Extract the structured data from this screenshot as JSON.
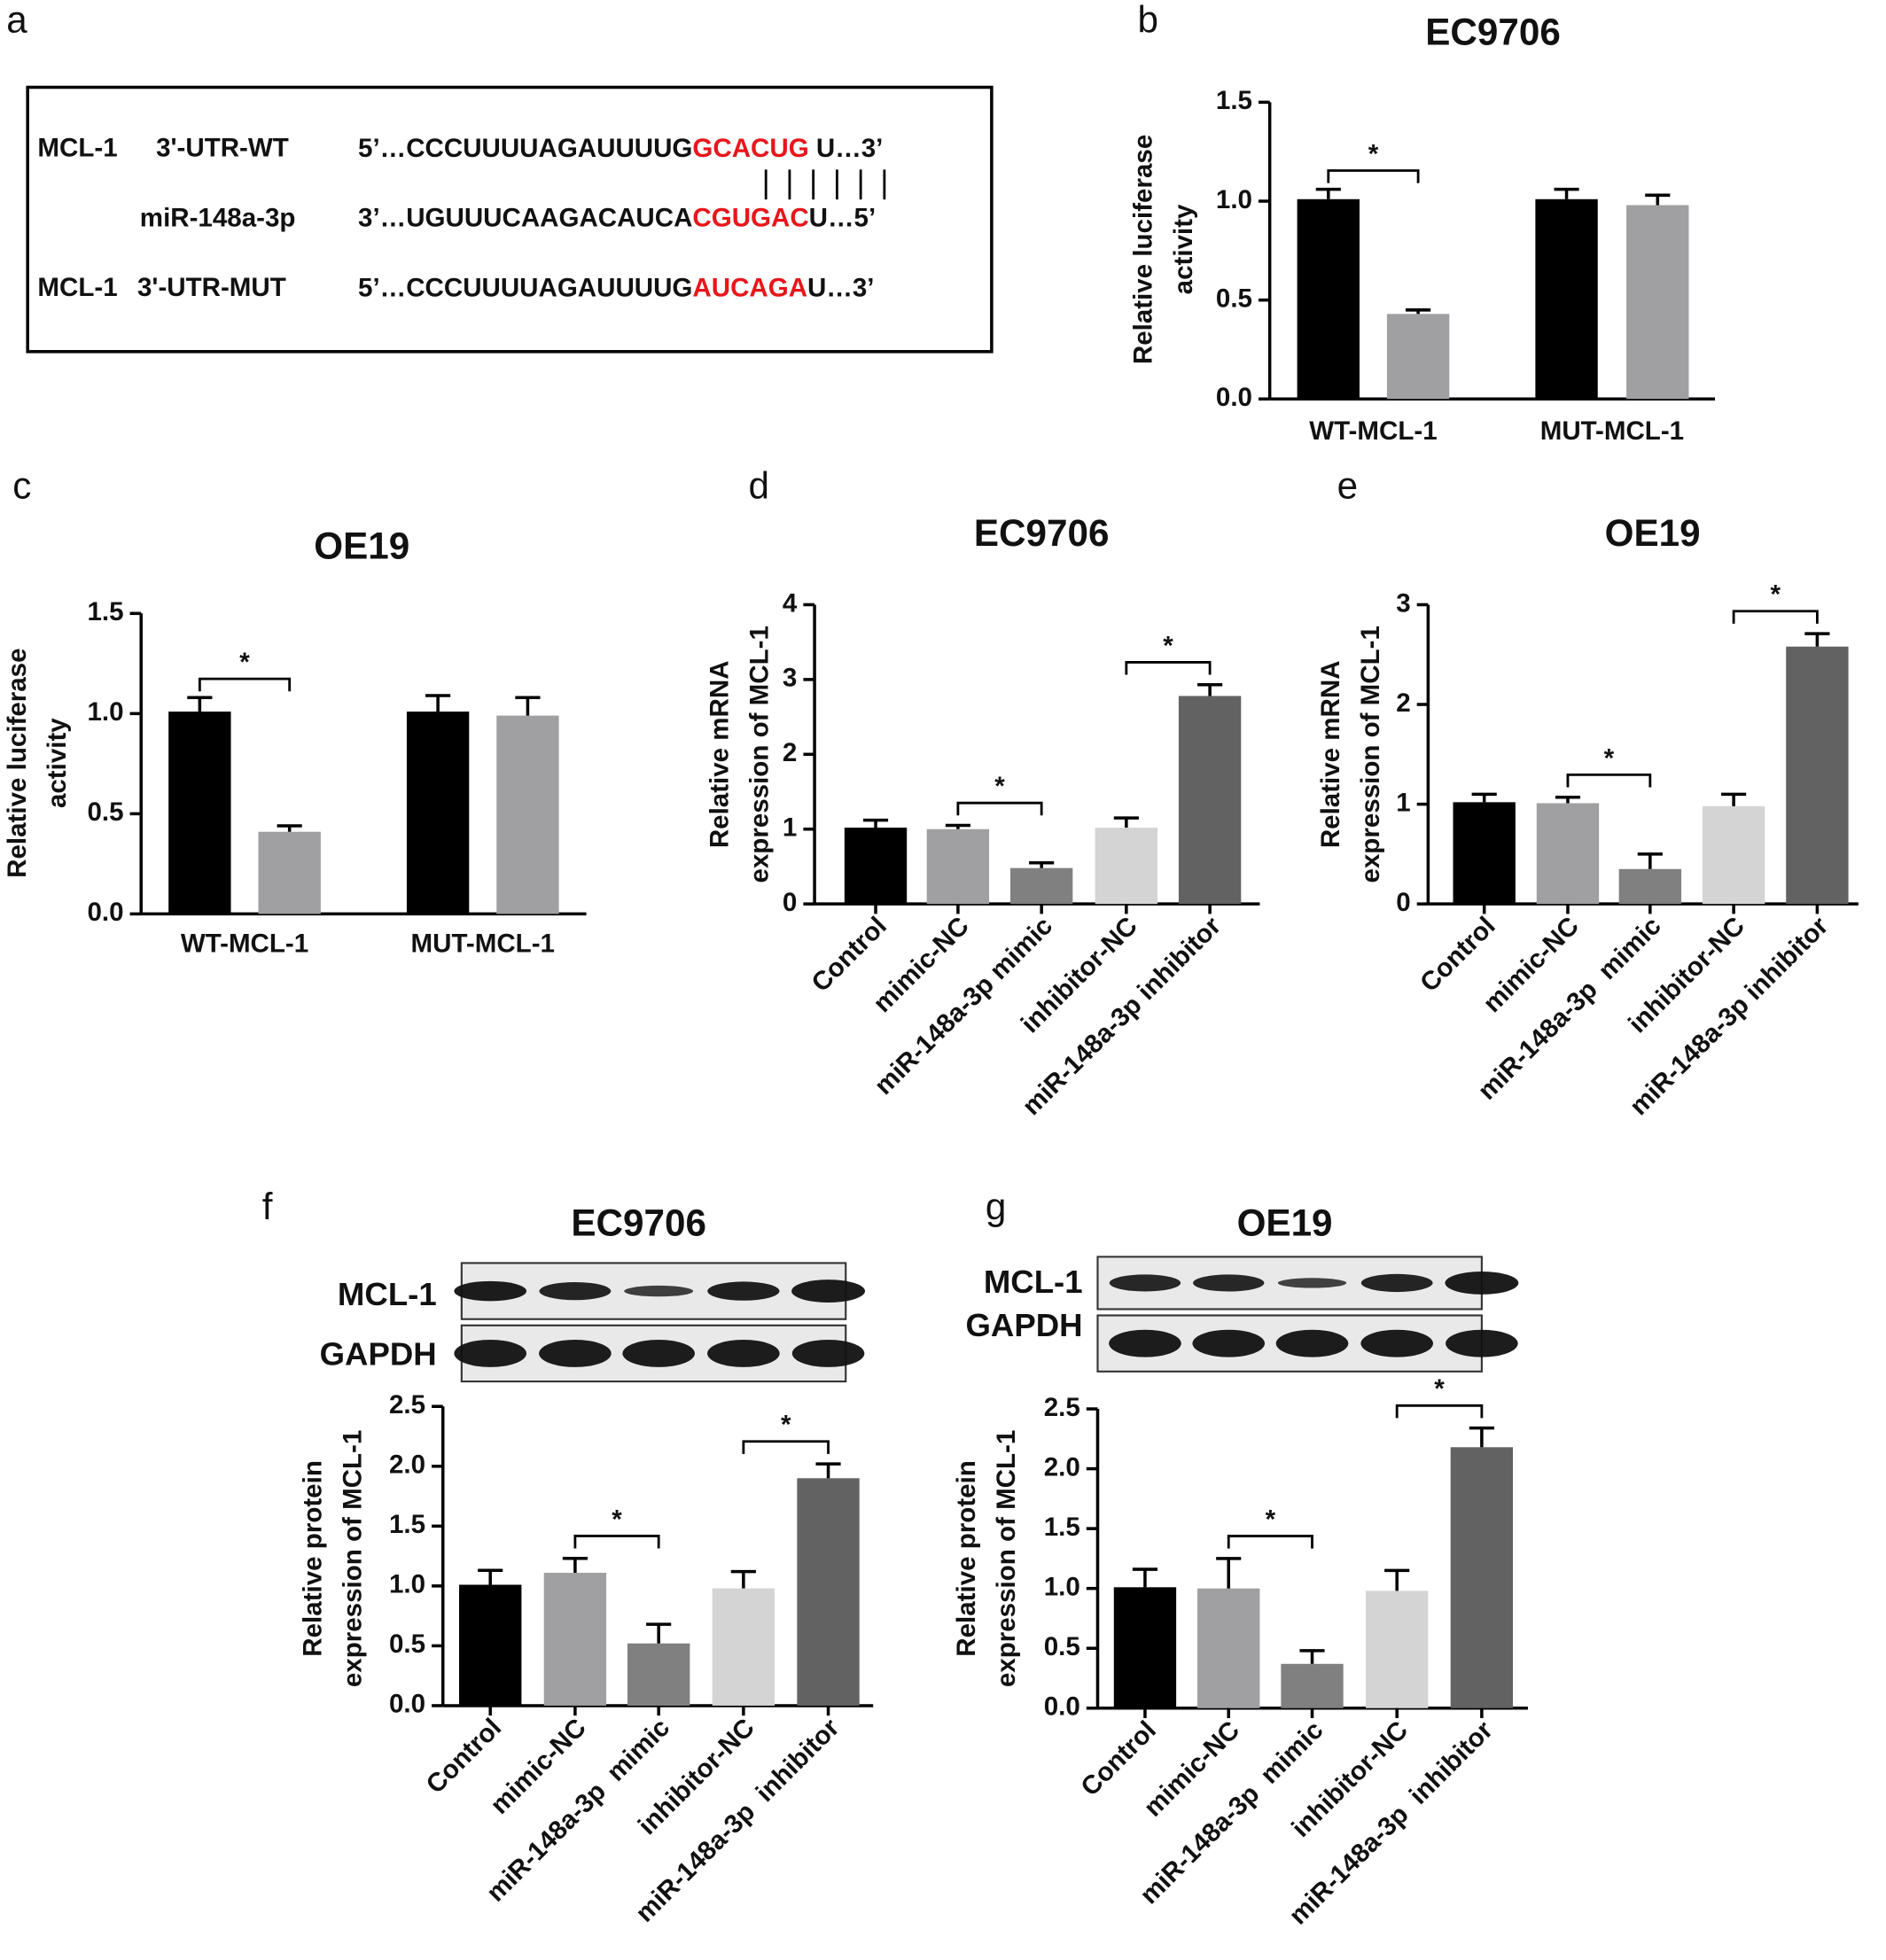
{
  "sequence_panel": {
    "panel": "a",
    "rows": [
      {
        "gene": "MCL-1",
        "region": "3'-UTR-WT",
        "sequence": [
          "5’…CCCUUUUAGAUUUUG",
          "GCACUG",
          " U…3’"
        ]
      },
      {
        "region": "miR-148a-3p",
        "sequence": [
          "3’…UGUUUCAAGACAUCA",
          "CGUGAC",
          "U…5’"
        ]
      },
      {
        "gene": "MCL-1",
        "region": "3'-UTR-MUT",
        "sequence": [
          "5’…CCCUUUUAGAUUUUG",
          "AUCAGA",
          "U…3’"
        ]
      }
    ]
  },
  "chart_data": [
    {
      "type": "grouped_bar",
      "panel": "b",
      "title": "EC9706",
      "ylabel": [
        "Relative luciferase",
        "activity"
      ],
      "categories": [
        "WT-MCL-1",
        "MUT-MCL-1"
      ],
      "series": [
        {
          "color": "#000000",
          "values": [
            1.01,
            1.01
          ],
          "errors": [
            0.05,
            0.05
          ]
        },
        {
          "color": "#a0a0a2",
          "values": [
            0.43,
            0.98
          ],
          "errors": [
            0.02,
            0.05
          ]
        }
      ],
      "ylim": [
        0,
        1.5
      ],
      "yticks": [
        {
          "value": 0,
          "label": "0.0"
        },
        0.5,
        {
          "value": 1,
          "label": "1.0"
        },
        1.5
      ],
      "significance": [
        {
          "label": "*",
          "category": 0
        }
      ]
    },
    {
      "type": "grouped_bar",
      "panel": "c",
      "title": "OE19",
      "ylabel": [
        "Relative luciferase",
        "activity"
      ],
      "categories": [
        "WT-MCL-1",
        "MUT-MCL-1"
      ],
      "series": [
        {
          "color": "#000000",
          "values": [
            1.01,
            1.01
          ],
          "errors": [
            0.07,
            0.08
          ]
        },
        {
          "color": "#a0a0a2",
          "values": [
            0.41,
            0.99
          ],
          "errors": [
            0.03,
            0.09
          ]
        }
      ],
      "ylim": [
        0,
        1.5
      ],
      "yticks": [
        {
          "value": 0,
          "label": "0.0"
        },
        0.5,
        {
          "value": 1,
          "label": "1.0"
        },
        1.5
      ],
      "significance": [
        {
          "label": "*",
          "category": 0
        }
      ]
    },
    {
      "type": "bar",
      "panel": "d",
      "title": "EC9706",
      "ylabel": [
        "Relative mRNA",
        "expression of MCL-1"
      ],
      "categories": [
        "Control",
        "mimic-NC",
        "miR-148a-3p mimic",
        "inhibitor-NC",
        "miR-148a-3p inhibitor"
      ],
      "values": [
        1.02,
        1.0,
        0.48,
        1.02,
        2.78
      ],
      "errors": [
        0.1,
        0.05,
        0.07,
        0.13,
        0.15
      ],
      "colors": [
        "#000000",
        "#a0a0a2",
        "#808080",
        "#d4d4d4",
        "#626262"
      ],
      "ylim": [
        0,
        4
      ],
      "yticks": [
        0,
        1,
        2,
        3,
        4
      ],
      "significance": [
        {
          "label": "*",
          "bars": [
            1,
            2
          ]
        },
        {
          "label": "*",
          "bars": [
            3,
            4
          ]
        }
      ]
    },
    {
      "type": "bar",
      "panel": "e",
      "title": "OE19",
      "ylabel": [
        "Relative mRNA",
        "expression of MCL-1"
      ],
      "categories": [
        "Control",
        "mimic-NC",
        "miR-148a-3p  mimic",
        "inhibitor-NC",
        "miR-148a-3p inhibitor"
      ],
      "values": [
        1.02,
        1.01,
        0.35,
        0.98,
        2.58
      ],
      "errors": [
        0.08,
        0.06,
        0.15,
        0.12,
        0.13
      ],
      "colors": [
        "#000000",
        "#a0a0a2",
        "#808080",
        "#d4d4d4",
        "#626262"
      ],
      "ylim": [
        0,
        3
      ],
      "yticks": [
        0,
        1,
        2,
        3
      ],
      "significance": [
        {
          "label": "*",
          "bars": [
            1,
            2
          ]
        },
        {
          "label": "*",
          "bars": [
            3,
            4
          ]
        }
      ]
    },
    {
      "type": "bar",
      "panel": "f",
      "title": "EC9706",
      "ylabel": [
        "Relative protein",
        "expression of MCL-1"
      ],
      "blot_labels": [
        "MCL-1",
        "GAPDH"
      ],
      "categories": [
        "Control",
        "mimic-NC",
        "miR-148a-3p  mimic",
        "inhibitor-NC",
        "miR-148a-3p  inhibitor"
      ],
      "values": [
        1.01,
        1.11,
        0.52,
        0.98,
        1.9
      ],
      "errors": [
        0.12,
        0.12,
        0.16,
        0.14,
        0.12
      ],
      "colors": [
        "#000000",
        "#a0a0a2",
        "#808080",
        "#d4d4d4",
        "#626262"
      ],
      "ylim": [
        0,
        2.5
      ],
      "yticks": [
        {
          "value": 0,
          "label": "0.0"
        },
        0.5,
        {
          "value": 1,
          "label": "1.0"
        },
        1.5,
        {
          "value": 2,
          "label": "2.0"
        },
        2.5
      ],
      "significance": [
        {
          "label": "*",
          "bars": [
            1,
            2
          ]
        },
        {
          "label": "*",
          "bars": [
            3,
            4
          ]
        }
      ]
    },
    {
      "type": "bar",
      "panel": "g",
      "title": "OE19",
      "ylabel": [
        "Relative protein",
        "expression of MCL-1"
      ],
      "blot_labels": [
        "MCL-1",
        "GAPDH"
      ],
      "categories": [
        "Control",
        "mimic-NC",
        "miR-148a-3p  mimic",
        "inhibitor-NC",
        "miR-148a-3p  inhibitor"
      ],
      "values": [
        1.01,
        1.0,
        0.37,
        0.98,
        2.18
      ],
      "errors": [
        0.15,
        0.25,
        0.11,
        0.17,
        0.16
      ],
      "colors": [
        "#000000",
        "#a0a0a2",
        "#808080",
        "#d4d4d4",
        "#626262"
      ],
      "ylim": [
        0,
        2.5
      ],
      "yticks": [
        {
          "value": 0,
          "label": "0.0"
        },
        0.5,
        {
          "value": 1,
          "label": "1.0"
        },
        1.5,
        {
          "value": 2,
          "label": "2.0"
        },
        2.5
      ],
      "significance": [
        {
          "label": "*",
          "bars": [
            1,
            2
          ]
        },
        {
          "label": "*",
          "bars": [
            3,
            4
          ]
        }
      ]
    }
  ]
}
